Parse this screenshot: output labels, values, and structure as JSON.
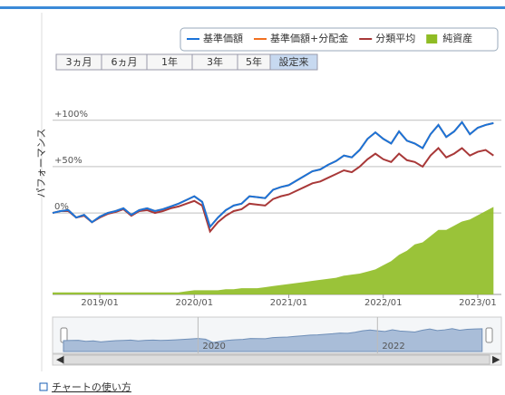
{
  "chart_data": {
    "type": "line",
    "y_title": "パフォーマンス",
    "x": [
      "2018/07",
      "2018/08",
      "2018/09",
      "2018/10",
      "2018/11",
      "2018/12",
      "2019/01",
      "2019/02",
      "2019/03",
      "2019/04",
      "2019/05",
      "2019/06",
      "2019/07",
      "2019/08",
      "2019/09",
      "2019/10",
      "2019/11",
      "2019/12",
      "2020/01",
      "2020/02",
      "2020/03",
      "2020/04",
      "2020/05",
      "2020/06",
      "2020/07",
      "2020/08",
      "2020/09",
      "2020/10",
      "2020/11",
      "2020/12",
      "2021/01",
      "2021/02",
      "2021/03",
      "2021/04",
      "2021/05",
      "2021/06",
      "2021/07",
      "2021/08",
      "2021/09",
      "2021/10",
      "2021/11",
      "2021/12",
      "2022/01",
      "2022/02",
      "2022/03",
      "2022/04",
      "2022/05",
      "2022/06",
      "2022/07",
      "2022/08",
      "2022/09",
      "2022/10",
      "2022/11",
      "2022/12",
      "2023/01",
      "2023/02",
      "2023/03"
    ],
    "xlim": [
      "2018/07",
      "2023/04"
    ],
    "xticks": [
      "2019/01",
      "2020/01",
      "2021/01",
      "2022/01",
      "2023/01"
    ],
    "ylim": [
      -88,
      137
    ],
    "yticks": [
      {
        "value": 0,
        "label": "0%"
      },
      {
        "value": 50,
        "label": "+50%"
      },
      {
        "value": 100,
        "label": "+100%"
      }
    ],
    "y2lim": [
      0,
      100
    ],
    "grid": true,
    "series": [
      {
        "name": "基準価額",
        "color": "#1a73d9",
        "values": [
          0,
          2,
          3,
          -5,
          -2,
          -10,
          -4,
          0,
          2,
          5,
          -2,
          3,
          5,
          2,
          4,
          7,
          10,
          14,
          18,
          12,
          -15,
          -5,
          3,
          8,
          10,
          18,
          17,
          16,
          25,
          28,
          30,
          35,
          40,
          45,
          47,
          52,
          56,
          62,
          60,
          68,
          80,
          87,
          80,
          75,
          88,
          78,
          75,
          70,
          85,
          95,
          82,
          88,
          98,
          85,
          92,
          95,
          97
        ]
      },
      {
        "name": "基準価額+分配金",
        "color": "#f07020",
        "values": [
          0,
          2,
          3,
          -5,
          -2,
          -10,
          -4,
          0,
          2,
          5,
          -2,
          3,
          5,
          2,
          4,
          7,
          10,
          14,
          18,
          12,
          -15,
          -5,
          3,
          8,
          10,
          18,
          17,
          16,
          25,
          28,
          30,
          35,
          40,
          45,
          47,
          52,
          56,
          62,
          60,
          68,
          80,
          87,
          80,
          75,
          88,
          78,
          75,
          70,
          85,
          95,
          82,
          88,
          98,
          85,
          92,
          95,
          97
        ]
      },
      {
        "name": "分類平均",
        "color": "#a83838",
        "values": [
          0,
          2,
          2,
          -5,
          -3,
          -10,
          -5,
          -1,
          1,
          4,
          -3,
          2,
          3,
          0,
          2,
          5,
          7,
          10,
          13,
          8,
          -20,
          -10,
          -3,
          2,
          4,
          10,
          9,
          8,
          15,
          18,
          20,
          24,
          28,
          32,
          34,
          38,
          42,
          46,
          44,
          50,
          58,
          64,
          58,
          55,
          64,
          57,
          55,
          50,
          62,
          70,
          60,
          64,
          70,
          62,
          66,
          68,
          62
        ]
      },
      {
        "name": "純資産",
        "type": "area",
        "axis": "y2",
        "color": "#8fbc24",
        "values": [
          1,
          1,
          1,
          1,
          1,
          1,
          1,
          1,
          1,
          1,
          1,
          1,
          1,
          1,
          1,
          1,
          1,
          1.5,
          2,
          2,
          2,
          2,
          2.5,
          2.5,
          3,
          3,
          3,
          3.5,
          4,
          4.5,
          5,
          5.5,
          6,
          6.5,
          7,
          7.5,
          8,
          9,
          9.5,
          10,
          11,
          12,
          14,
          16,
          19,
          21,
          24,
          25,
          28,
          31,
          31,
          33,
          35,
          36,
          38,
          40,
          42
        ]
      }
    ]
  },
  "range_buttons": [
    "3ヵ月",
    "6ヵ月",
    "1年",
    "3年",
    "5年",
    "設定来"
  ],
  "range_selected": 5,
  "range_disabled": [
    4
  ],
  "navigator": {
    "labels": [
      "2020",
      "2022"
    ]
  },
  "help_link": "チャートの使い方"
}
